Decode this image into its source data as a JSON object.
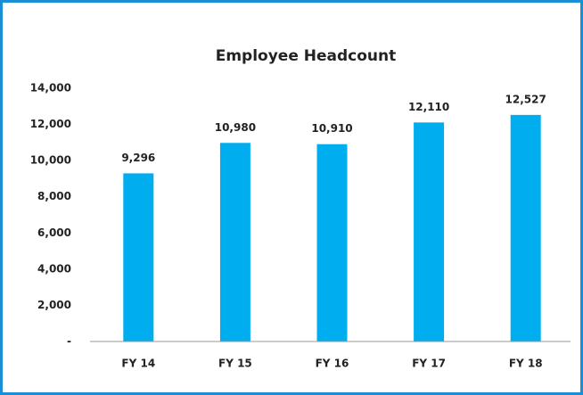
{
  "chart_data": {
    "type": "bar",
    "title": "Employee Headcount",
    "categories": [
      "FY 14",
      "FY 15",
      "FY 16",
      "FY 17",
      "FY 18"
    ],
    "values": [
      9296,
      10980,
      10910,
      12110,
      12527
    ],
    "value_labels": [
      "9,296",
      "10,980",
      "10,910",
      "12,110",
      "12,527"
    ],
    "color": "#00aeef",
    "ylim": [
      0,
      14000
    ],
    "yticks": [
      {
        "value": 0,
        "label": "-"
      },
      {
        "value": 2000,
        "label": "2,000"
      },
      {
        "value": 4000,
        "label": "4,000"
      },
      {
        "value": 6000,
        "label": "6,000"
      },
      {
        "value": 8000,
        "label": "8,000"
      },
      {
        "value": 10000,
        "label": "10,000"
      },
      {
        "value": 12000,
        "label": "12,000"
      },
      {
        "value": 14000,
        "label": "14,000"
      }
    ],
    "grid": false
  }
}
